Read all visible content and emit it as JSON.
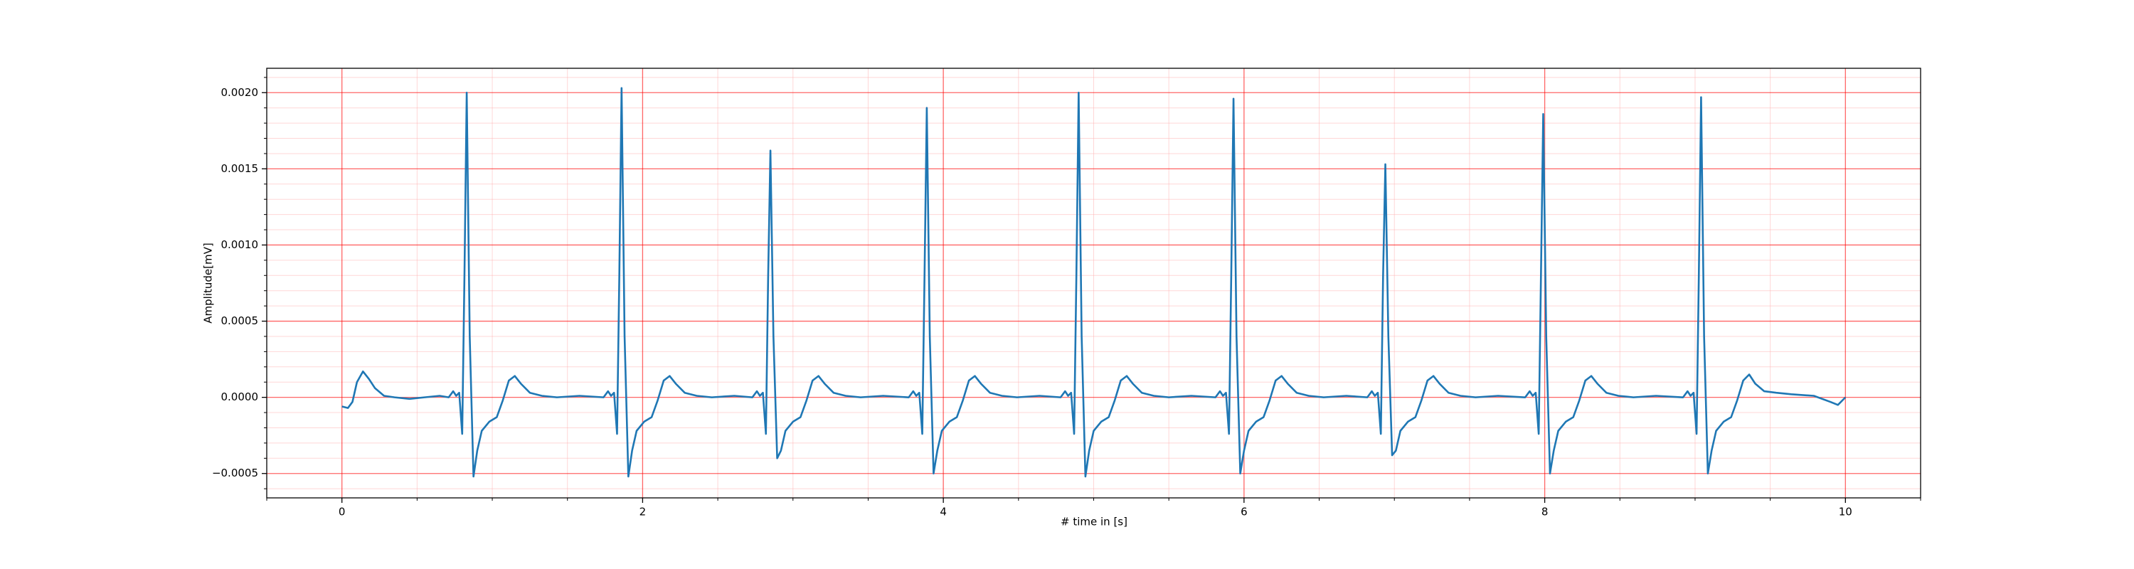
{
  "chart_data": {
    "type": "line",
    "xlabel": "# time in [s]",
    "ylabel": "Amplitude[mV]",
    "color": "#1f77b4",
    "grid": true,
    "major_grid_color": "#ff0000",
    "minor_grid_color": "#ffb0b0",
    "xlim": [
      -0.5,
      10.5
    ],
    "ylim": [
      -0.00066,
      0.00216
    ],
    "xticks": [
      0,
      2,
      4,
      6,
      8,
      10
    ],
    "yticks": [
      {
        "value": -0.0005,
        "label": "−0.0005"
      },
      {
        "value": 0,
        "label": "0.0000"
      },
      {
        "value": 0.0005,
        "label": "0.0005"
      },
      {
        "value": 0.001,
        "label": "0.0010"
      },
      {
        "value": 0.0015,
        "label": "0.0015"
      },
      {
        "value": 0.002,
        "label": "0.0020"
      }
    ],
    "xminorticks": [
      -0.5,
      0.5,
      1,
      1.5,
      2.5,
      3,
      3.5,
      4.5,
      5,
      5.5,
      6.5,
      7,
      7.5,
      8.5,
      9,
      9.5,
      10.5
    ],
    "yminorticks": [
      -0.0006,
      -0.0004,
      -0.0003,
      -0.0002,
      -0.0001,
      0.0001,
      0.0002,
      0.0003,
      0.0004,
      0.0006,
      0.0007,
      0.0008,
      0.0009,
      0.0011,
      0.0012,
      0.0013,
      0.0014,
      0.0016,
      0.0017,
      0.0018,
      0.0019,
      0.0021
    ],
    "x": [
      0,
      0.04,
      0.07,
      0.1,
      0.14,
      0.18,
      0.22,
      0.28,
      0.35,
      0.45,
      0.55,
      0.65,
      0.71,
      0.74,
      0.76,
      0.78,
      0.8,
      0.815,
      0.83,
      0.85,
      0.875,
      0.9,
      0.93,
      0.98,
      1.03,
      1.07,
      1.11,
      1.15,
      1.19,
      1.25,
      1.33,
      1.43,
      1.58,
      1.74,
      1.77,
      1.79,
      1.81,
      1.83,
      1.845,
      1.86,
      1.88,
      1.905,
      1.93,
      1.96,
      2.01,
      2.06,
      2.1,
      2.14,
      2.18,
      2.22,
      2.28,
      2.36,
      2.46,
      2.61,
      2.73,
      2.76,
      2.78,
      2.8,
      2.82,
      2.835,
      2.85,
      2.87,
      2.895,
      2.92,
      2.95,
      3.0,
      3.05,
      3.09,
      3.13,
      3.17,
      3.21,
      3.27,
      3.35,
      3.45,
      3.6,
      3.77,
      3.8,
      3.82,
      3.84,
      3.86,
      3.875,
      3.89,
      3.91,
      3.935,
      3.96,
      3.99,
      4.04,
      4.09,
      4.13,
      4.17,
      4.21,
      4.25,
      4.31,
      4.39,
      4.49,
      4.64,
      4.78,
      4.81,
      4.83,
      4.85,
      4.87,
      4.885,
      4.9,
      4.92,
      4.945,
      4.97,
      5.0,
      5.05,
      5.1,
      5.14,
      5.18,
      5.22,
      5.26,
      5.32,
      5.4,
      5.5,
      5.65,
      5.81,
      5.84,
      5.86,
      5.88,
      5.9,
      5.915,
      5.93,
      5.95,
      5.975,
      6.0,
      6.03,
      6.08,
      6.13,
      6.17,
      6.21,
      6.25,
      6.29,
      6.35,
      6.43,
      6.53,
      6.68,
      6.82,
      6.85,
      6.87,
      6.89,
      6.91,
      6.925,
      6.94,
      6.96,
      6.985,
      7.01,
      7.04,
      7.09,
      7.14,
      7.18,
      7.22,
      7.26,
      7.3,
      7.36,
      7.44,
      7.54,
      7.69,
      7.87,
      7.9,
      7.92,
      7.94,
      7.96,
      7.975,
      7.99,
      8.01,
      8.035,
      8.06,
      8.09,
      8.14,
      8.19,
      8.23,
      8.27,
      8.31,
      8.35,
      8.41,
      8.49,
      8.59,
      8.74,
      8.92,
      8.95,
      8.97,
      8.99,
      9.01,
      9.025,
      9.04,
      9.06,
      9.085,
      9.11,
      9.14,
      9.19,
      9.24,
      9.28,
      9.32,
      9.36,
      9.4,
      9.46,
      9.54,
      9.64,
      9.79,
      9.9,
      9.95,
      10.0
    ],
    "values": [
      -6e-05,
      -7e-05,
      -3e-05,
      0.0001,
      0.00017,
      0.00012,
      6e-05,
      1e-05,
      0,
      -1e-05,
      0,
      1e-05,
      0,
      4e-05,
      1e-05,
      3e-05,
      -0.00024,
      0.0008,
      0.002,
      0.0004,
      -0.00052,
      -0.00035,
      -0.00022,
      -0.00016,
      -0.00013,
      -2e-05,
      0.00011,
      0.00014,
      9e-05,
      3e-05,
      1e-05,
      0,
      1e-05,
      0,
      4e-05,
      1e-05,
      3e-05,
      -0.00024,
      0.0008,
      0.00203,
      0.0004,
      -0.00052,
      -0.00035,
      -0.00022,
      -0.00016,
      -0.00013,
      -2e-05,
      0.00011,
      0.00014,
      9e-05,
      3e-05,
      1e-05,
      0,
      1e-05,
      0,
      4e-05,
      1e-05,
      3e-05,
      -0.00024,
      0.0008,
      0.00162,
      0.0004,
      -0.0004,
      -0.00035,
      -0.00022,
      -0.00016,
      -0.00013,
      -2e-05,
      0.00011,
      0.00014,
      9e-05,
      3e-05,
      1e-05,
      0,
      1e-05,
      0,
      4e-05,
      1e-05,
      3e-05,
      -0.00024,
      0.0008,
      0.0019,
      0.0004,
      -0.0005,
      -0.00035,
      -0.00022,
      -0.00016,
      -0.00013,
      -2e-05,
      0.00011,
      0.00014,
      9e-05,
      3e-05,
      1e-05,
      0,
      1e-05,
      0,
      4e-05,
      1e-05,
      3e-05,
      -0.00024,
      0.0008,
      0.002,
      0.0004,
      -0.00052,
      -0.00035,
      -0.00022,
      -0.00016,
      -0.00013,
      -2e-05,
      0.00011,
      0.00014,
      9e-05,
      3e-05,
      1e-05,
      0,
      1e-05,
      0,
      4e-05,
      1e-05,
      3e-05,
      -0.00024,
      0.0008,
      0.00196,
      0.0004,
      -0.0005,
      -0.00035,
      -0.00022,
      -0.00016,
      -0.00013,
      -2e-05,
      0.00011,
      0.00014,
      9e-05,
      3e-05,
      1e-05,
      0,
      1e-05,
      0,
      4e-05,
      1e-05,
      3e-05,
      -0.00024,
      0.0008,
      0.00153,
      0.0004,
      -0.00038,
      -0.00035,
      -0.00022,
      -0.00016,
      -0.00013,
      -2e-05,
      0.00011,
      0.00014,
      9e-05,
      3e-05,
      1e-05,
      0,
      1e-05,
      0,
      4e-05,
      1e-05,
      3e-05,
      -0.00024,
      0.0008,
      0.00186,
      0.0004,
      -0.0005,
      -0.00035,
      -0.00022,
      -0.00016,
      -0.00013,
      -2e-05,
      0.00011,
      0.00014,
      9e-05,
      3e-05,
      1e-05,
      0,
      1e-05,
      0,
      4e-05,
      1e-05,
      3e-05,
      -0.00024,
      0.0008,
      0.00197,
      0.0004,
      -0.0005,
      -0.00035,
      -0.00022,
      -0.00016,
      -0.00013,
      -2e-05,
      0.00011,
      0.00015,
      9e-05,
      4e-05,
      3e-05,
      2e-05,
      1e-05,
      -3e-05,
      -5e-05,
      0
    ]
  }
}
